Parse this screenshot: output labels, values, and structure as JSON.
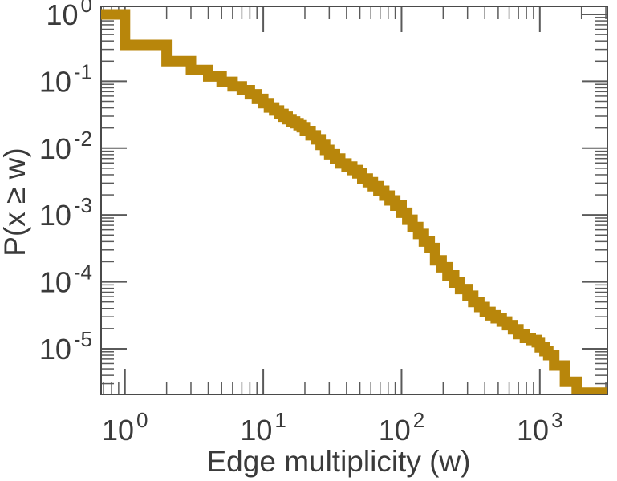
{
  "figure": {
    "background": "#ffffff"
  },
  "chart_data": {
    "type": "line",
    "subtype": "ccdf-step-log-log",
    "title": "",
    "xlabel": "Edge multiplicity (w)",
    "ylabel": "P(x ≥ w)",
    "x_scale": "log",
    "y_scale": "log",
    "xlim": [
      0.672,
      3080
    ],
    "ylim": [
      2.07e-06,
      1.318
    ],
    "x_tick_exponents": [
      0,
      1,
      2,
      3
    ],
    "y_tick_exponents": [
      0,
      -1,
      -2,
      -3,
      -4,
      -5
    ],
    "tick_label_base": "10",
    "grid": false,
    "legend": "none",
    "line_color": "#B8860B",
    "line_width": 13,
    "axis_color": "#4a4a4a",
    "tick_color": "#5a5a5a",
    "text_color": "#3a3a3a",
    "steps_note": "pairs [w, P(x>=w)]; curve drawn as steps with vertical drop at each w; last pair runs off right edge",
    "steps": [
      [
        1,
        1.0
      ],
      [
        2,
        0.35
      ],
      [
        3,
        0.2
      ],
      [
        4,
        0.148
      ],
      [
        5,
        0.118
      ],
      [
        6,
        0.098
      ],
      [
        7,
        0.084
      ],
      [
        8,
        0.0735
      ],
      [
        9,
        0.064
      ],
      [
        10,
        0.0545
      ],
      [
        11,
        0.047
      ],
      [
        12,
        0.0405
      ],
      [
        13,
        0.0365
      ],
      [
        14,
        0.0325
      ],
      [
        15,
        0.0295
      ],
      [
        16,
        0.027
      ],
      [
        17,
        0.025
      ],
      [
        18,
        0.0235
      ],
      [
        19,
        0.022
      ],
      [
        20,
        0.0205
      ],
      [
        22,
        0.018
      ],
      [
        24,
        0.0155
      ],
      [
        26,
        0.0135
      ],
      [
        28,
        0.0112
      ],
      [
        30,
        0.0094
      ],
      [
        33,
        0.0081
      ],
      [
        36,
        0.007
      ],
      [
        40,
        0.0059
      ],
      [
        44,
        0.0053
      ],
      [
        48,
        0.0047
      ],
      [
        52,
        0.0042
      ],
      [
        57,
        0.0035
      ],
      [
        62,
        0.0031
      ],
      [
        68,
        0.0027
      ],
      [
        75,
        0.0023
      ],
      [
        82,
        0.00195
      ],
      [
        90,
        0.00165
      ],
      [
        100,
        0.00138
      ],
      [
        110,
        0.00108
      ],
      [
        120,
        0.00085
      ],
      [
        132,
        0.00066
      ],
      [
        145,
        0.00052
      ],
      [
        160,
        0.0004
      ],
      [
        175,
        0.00032
      ],
      [
        195,
        0.00021
      ],
      [
        215,
        0.000165
      ],
      [
        240,
        0.000125
      ],
      [
        265,
        9.75e-05
      ],
      [
        300,
        7.8e-05
      ],
      [
        330,
        6.2e-05
      ],
      [
        365,
        5e-05
      ],
      [
        400,
        4.2e-05
      ],
      [
        440,
        3.55e-05
      ],
      [
        480,
        3.15e-05
      ],
      [
        530,
        2.85e-05
      ],
      [
        580,
        2.55e-05
      ],
      [
        640,
        2.25e-05
      ],
      [
        700,
        1.95e-05
      ],
      [
        780,
        1.65e-05
      ],
      [
        860,
        1.45e-05
      ],
      [
        950,
        1.35e-05
      ],
      [
        1000,
        1.25e-05
      ],
      [
        1080,
        1.05e-05
      ],
      [
        1150,
        9.2e-06
      ],
      [
        1270,
        8e-06
      ],
      [
        1520,
        5.6e-06
      ],
      [
        1850,
        3.2e-06
      ],
      [
        2350,
        2.2e-06
      ],
      [
        3080,
        2.2e-06
      ]
    ]
  }
}
